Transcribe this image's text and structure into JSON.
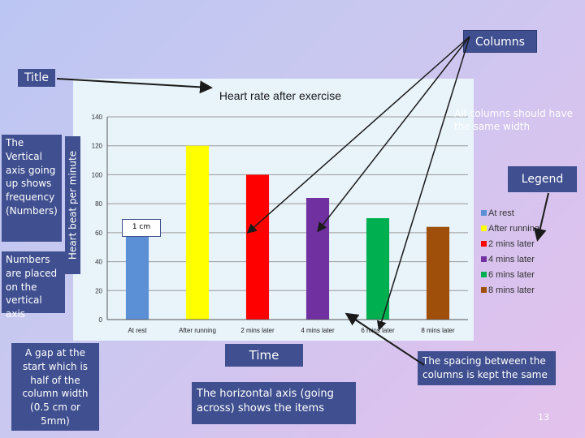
{
  "slide": {
    "columns_label": "Columns",
    "title_label": "Title",
    "same_width_note": "All columns should have the same width",
    "legend_label": "Legend",
    "vertical_axis_note": "The Vertical axis going up shows frequency (Numbers)",
    "numbers_placed_note": "Numbers are placed on the vertical axis",
    "gap_note": "A gap at the start which is half of the column width (0.5 cm or 5mm)",
    "time_label": "Time",
    "spacing_note": "The spacing between the columns is kept the same",
    "horizontal_axis_note": "The horizontal axis (going across) shows the items",
    "scale_marker": "1 cm",
    "page_number": "13"
  },
  "chart_data": {
    "type": "bar",
    "title": "Heart rate after exercise",
    "ylabel": "Heart beat per minute",
    "xlabel": "",
    "categories": [
      "At rest",
      "After running",
      "2 mins later",
      "4 mins later",
      "6 mins later",
      "8 mins later"
    ],
    "values": [
      64,
      120,
      100,
      84,
      70,
      64
    ],
    "colors": [
      "#5b8fd6",
      "#ffff00",
      "#ff0000",
      "#7030a0",
      "#00b050",
      "#a04f0a"
    ],
    "ylim": [
      0,
      140
    ],
    "yticks": [
      "0",
      "20",
      "40",
      "60",
      "80",
      "100",
      "120",
      "140"
    ],
    "grid": true,
    "legend_position": "right"
  }
}
